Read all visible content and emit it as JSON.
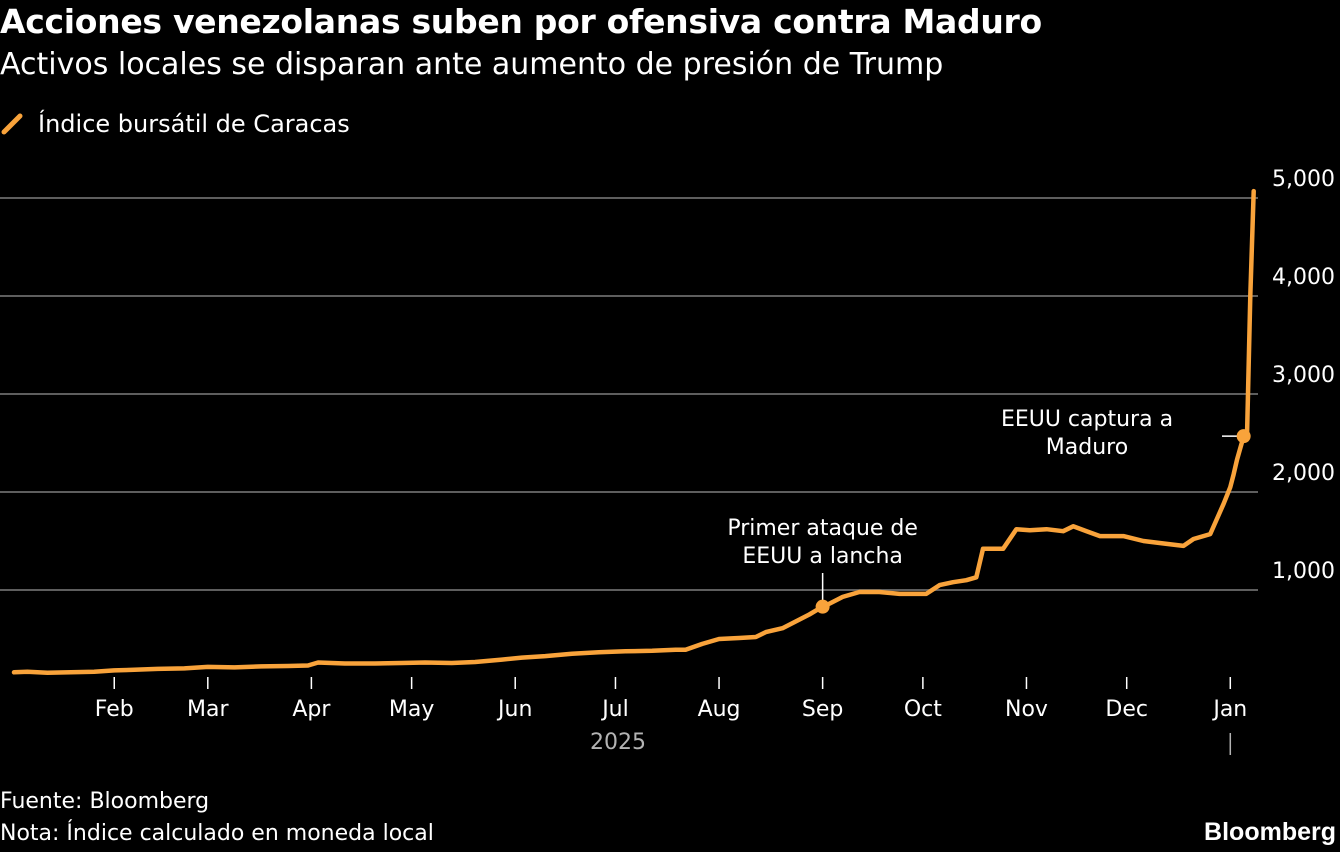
{
  "header": {
    "title": "Acciones venezolanas suben por ofensiva contra Maduro",
    "subtitle": "Activos locales se disparan ante aumento de presión de Trump"
  },
  "legend": {
    "label": "Índice bursátil de Caracas",
    "icon": "line-swatch-icon"
  },
  "colors": {
    "background": "#000000",
    "series": "#f9a33b",
    "grid": "#5e5e5e",
    "text": "#ffffff",
    "muted": "#b3b3b3"
  },
  "chart_data": {
    "type": "line",
    "title": "Acciones venezolanas suben por ofensiva contra Maduro",
    "subtitle": "Activos locales se disparan ante aumento de presión de Trump",
    "xlabel": "2025",
    "ylabel": "",
    "ylim": [
      0,
      5000
    ],
    "y_ticks": [
      1000,
      2000,
      3000,
      4000,
      5000
    ],
    "y_tick_labels": [
      "1,000",
      "2,000",
      "3,000",
      "4,000",
      "5,000"
    ],
    "x_range": [
      "2025-01-02",
      "2026-01-06"
    ],
    "x_ticks": [
      {
        "date": "2025-02-01",
        "label": "Feb"
      },
      {
        "date": "2025-03-01",
        "label": "Mar"
      },
      {
        "date": "2025-04-01",
        "label": "Apr"
      },
      {
        "date": "2025-05-01",
        "label": "May"
      },
      {
        "date": "2025-06-01",
        "label": "Jun"
      },
      {
        "date": "2025-07-01",
        "label": "Jul"
      },
      {
        "date": "2025-08-01",
        "label": "Aug"
      },
      {
        "date": "2025-09-01",
        "label": "Sep"
      },
      {
        "date": "2025-10-01",
        "label": "Oct"
      },
      {
        "date": "2025-11-01",
        "label": "Nov"
      },
      {
        "date": "2025-12-01",
        "label": "Dec"
      },
      {
        "date": "2026-01-01",
        "label": "Jan"
      }
    ],
    "year_label": "2025",
    "grid": true,
    "legend_position": "top-left",
    "series": [
      {
        "name": "Índice bursátil de Caracas",
        "x": [
          "2025-01-02",
          "2025-01-06",
          "2025-01-12",
          "2025-01-19",
          "2025-01-26",
          "2025-02-01",
          "2025-02-06",
          "2025-02-14",
          "2025-02-22",
          "2025-03-01",
          "2025-03-09",
          "2025-03-17",
          "2025-03-25",
          "2025-03-31",
          "2025-04-03",
          "2025-04-11",
          "2025-04-20",
          "2025-04-28",
          "2025-05-05",
          "2025-05-13",
          "2025-05-20",
          "2025-05-28",
          "2025-06-03",
          "2025-06-10",
          "2025-06-18",
          "2025-06-26",
          "2025-07-04",
          "2025-07-12",
          "2025-07-19",
          "2025-07-22",
          "2025-07-27",
          "2025-08-01",
          "2025-08-07",
          "2025-08-12",
          "2025-08-15",
          "2025-08-20",
          "2025-08-24",
          "2025-08-28",
          "2025-08-31",
          "2025-09-01",
          "2025-09-03",
          "2025-09-07",
          "2025-09-12",
          "2025-09-18",
          "2025-09-24",
          "2025-09-29",
          "2025-10-02",
          "2025-10-06",
          "2025-10-10",
          "2025-10-14",
          "2025-10-17",
          "2025-10-19",
          "2025-10-25",
          "2025-10-29",
          "2025-11-02",
          "2025-11-07",
          "2025-11-12",
          "2025-11-15",
          "2025-11-19",
          "2025-11-23",
          "2025-11-30",
          "2025-12-06",
          "2025-12-13",
          "2025-12-18",
          "2025-12-21",
          "2025-12-26",
          "2025-12-30",
          "2026-01-01",
          "2026-01-02",
          "2026-01-03",
          "2026-01-05",
          "2026-01-06",
          "2026-01-07",
          "2026-01-08"
        ],
        "y": [
          160,
          165,
          155,
          160,
          165,
          180,
          185,
          195,
          200,
          215,
          210,
          220,
          225,
          230,
          260,
          250,
          250,
          255,
          260,
          255,
          265,
          290,
          310,
          325,
          350,
          365,
          375,
          380,
          390,
          390,
          450,
          500,
          510,
          520,
          570,
          610,
          680,
          750,
          810,
          830,
          860,
          930,
          980,
          980,
          960,
          960,
          960,
          1050,
          1080,
          1100,
          1130,
          1420,
          1420,
          1620,
          1610,
          1620,
          1600,
          1650,
          1600,
          1550,
          1550,
          1500,
          1470,
          1450,
          1520,
          1570,
          1880,
          2050,
          2180,
          2330,
          2570,
          2570,
          4000,
          5070
        ]
      }
    ],
    "annotations": [
      {
        "date": "2025-09-01",
        "value": 830,
        "text": [
          "Primer ataque de",
          "EEUU a lancha"
        ]
      },
      {
        "date": "2026-01-05",
        "value": 2570,
        "text": [
          "EEUU captura a",
          "Maduro"
        ]
      }
    ]
  },
  "footer": {
    "source": "Fuente: Bloomberg",
    "note": "Nota: Índice calculado en moneda local",
    "brand": "Bloomberg"
  }
}
